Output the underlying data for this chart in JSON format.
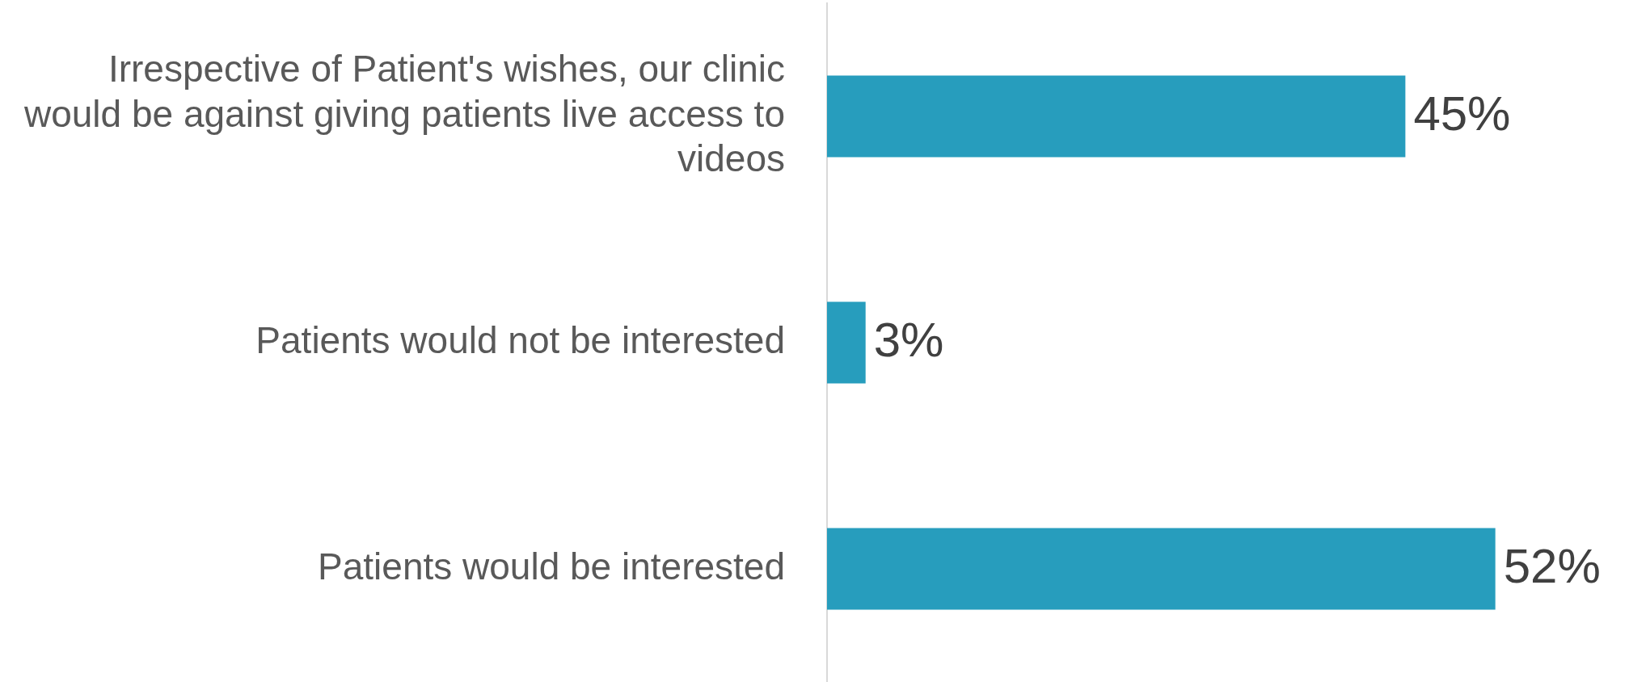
{
  "chart_data": {
    "type": "bar",
    "orientation": "horizontal",
    "categories": [
      "Irrespective of Patient's wishes, our clinic would be against giving patients live access to videos",
      "Patients would not be interested",
      "Patients would be interested"
    ],
    "values": [
      45,
      3,
      52
    ],
    "value_labels": [
      "45%",
      "3%",
      "52%"
    ],
    "color": "#279dbd"
  }
}
